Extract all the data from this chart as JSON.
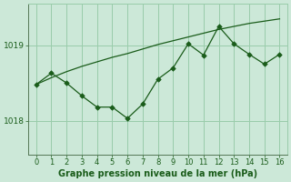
{
  "line1_x": [
    0,
    1,
    2,
    3,
    4,
    5,
    6,
    7,
    8,
    9,
    10,
    11,
    12,
    13,
    14,
    15,
    16
  ],
  "line1_y": [
    1018.48,
    1018.57,
    1018.65,
    1018.72,
    1018.78,
    1018.84,
    1018.89,
    1018.95,
    1019.01,
    1019.06,
    1019.11,
    1019.16,
    1019.21,
    1019.25,
    1019.29,
    1019.32,
    1019.35
  ],
  "line2_x": [
    0,
    1,
    2,
    3,
    4,
    5,
    6,
    7,
    8,
    9,
    10,
    11,
    12,
    13,
    14,
    15,
    16
  ],
  "line2_y": [
    1018.48,
    1018.63,
    1018.5,
    1018.33,
    1018.18,
    1018.18,
    1018.03,
    1018.22,
    1018.55,
    1018.7,
    1019.02,
    1018.87,
    1019.25,
    1019.02,
    1018.88,
    1018.75,
    1018.88
  ],
  "line_color": "#1a5c1a",
  "bg_color": "#cce8d8",
  "grid_color": "#99ccaa",
  "xlabel": "Graphe pression niveau de la mer (hPa)",
  "ytick_vals": [
    1018,
    1019
  ],
  "xtick_vals": [
    0,
    1,
    2,
    3,
    4,
    5,
    6,
    7,
    8,
    9,
    10,
    11,
    12,
    13,
    14,
    15,
    16
  ],
  "ylim": [
    1017.55,
    1019.55
  ],
  "xlim": [
    -0.5,
    16.5
  ],
  "marker_size": 2.8,
  "linewidth": 0.9,
  "tick_fontsize": 6,
  "xlabel_fontsize": 7
}
